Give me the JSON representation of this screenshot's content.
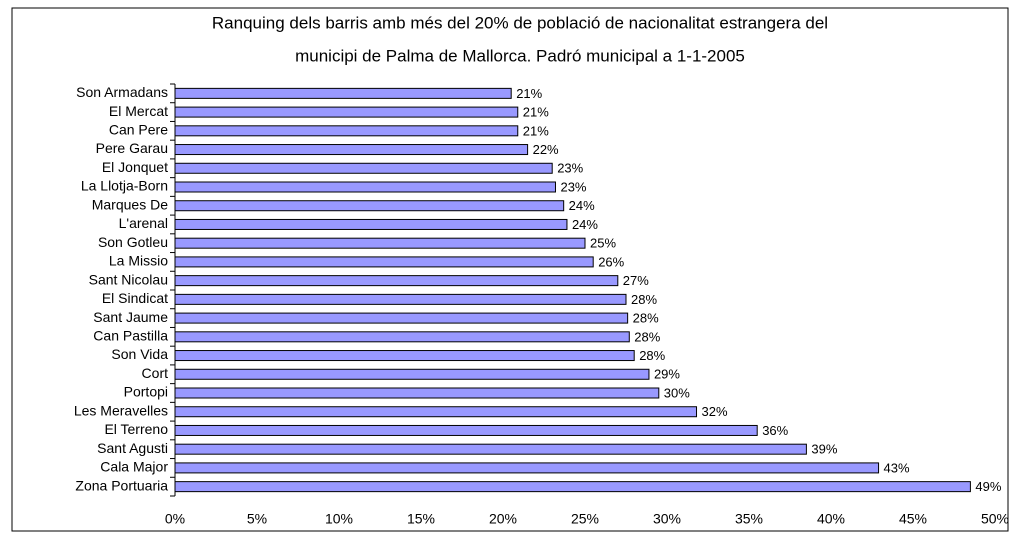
{
  "chart_data": {
    "type": "bar",
    "orientation": "horizontal",
    "title": [
      "Ranquing dels barris amb més del 20% de població de nacionalitat estrangera del",
      "municipi de Palma de Mallorca. Padró municipal a 1-1-2005"
    ],
    "categories": [
      "Son Armadans",
      "El Mercat",
      "Can Pere",
      "Pere Garau",
      "El Jonquet",
      "La Llotja-Born",
      "Marques De",
      "L'arenal",
      "Son Gotleu",
      "La Missio",
      "Sant Nicolau",
      "El Sindicat",
      "Sant Jaume",
      "Can Pastilla",
      "Son Vida",
      "Cort",
      "Portopi",
      "Les Meravelles",
      "El Terreno",
      "Sant Agusti",
      "Cala Major",
      "Zona Portuaria"
    ],
    "values": [
      20.5,
      20.9,
      20.9,
      21.5,
      23.0,
      23.2,
      23.7,
      23.9,
      25.0,
      25.5,
      27.0,
      27.5,
      27.6,
      27.7,
      28.0,
      28.9,
      29.5,
      31.8,
      35.5,
      38.5,
      42.9,
      48.5
    ],
    "value_labels": [
      "21%",
      "21%",
      "21%",
      "22%",
      "23%",
      "23%",
      "24%",
      "24%",
      "25%",
      "26%",
      "27%",
      "28%",
      "28%",
      "28%",
      "28%",
      "29%",
      "30%",
      "32%",
      "36%",
      "39%",
      "43%",
      "49%"
    ],
    "color": "#9999ff",
    "xlim": [
      0,
      50
    ],
    "xticks": [
      {
        "value": 0,
        "label": "0%"
      },
      {
        "value": 5,
        "label": "5%"
      },
      {
        "value": 10,
        "label": "10%"
      },
      {
        "value": 15,
        "label": "15%"
      },
      {
        "value": 20,
        "label": "20%"
      },
      {
        "value": 25,
        "label": "25%"
      },
      {
        "value": 30,
        "label": "30%"
      },
      {
        "value": 35,
        "label": "35%"
      },
      {
        "value": 40,
        "label": "40%"
      },
      {
        "value": 45,
        "label": "45%"
      },
      {
        "value": 50,
        "label": "50%"
      }
    ],
    "grid": false
  }
}
